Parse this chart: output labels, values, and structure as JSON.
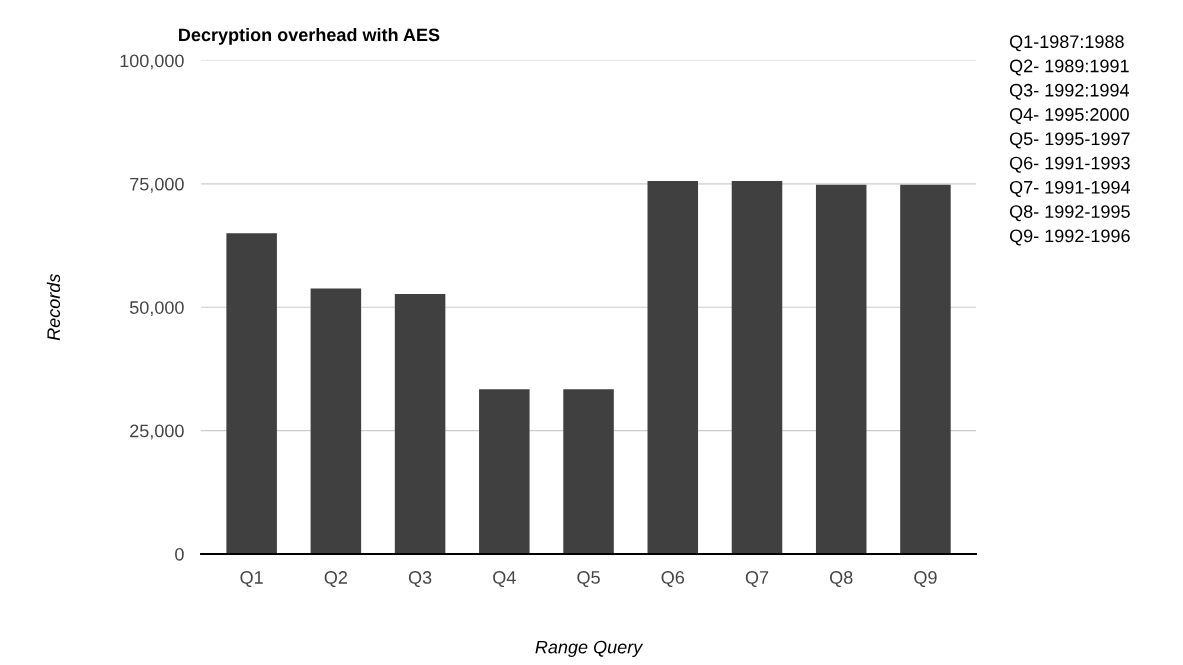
{
  "chart_data": {
    "type": "bar",
    "title": "Decryption overhead with AES",
    "xlabel": "Range Query",
    "ylabel": "Records",
    "categories": [
      "Q1",
      "Q2",
      "Q3",
      "Q4",
      "Q5",
      "Q6",
      "Q7",
      "Q8",
      "Q9"
    ],
    "values": [
      65000,
      53800,
      52700,
      33400,
      33400,
      75600,
      75600,
      74800,
      74800
    ],
    "color": "#404040",
    "ylim": [
      0,
      100000
    ],
    "yticks": [
      {
        "value": 0,
        "label": "0"
      },
      {
        "value": 25000,
        "label": "25,000"
      },
      {
        "value": 50000,
        "label": "50,000"
      },
      {
        "value": 75000,
        "label": "75,000"
      },
      {
        "value": 100000,
        "label": "100,000"
      }
    ],
    "grid": "y",
    "annotations": [
      "Q1-1987:1988",
      "Q2- 1989:1991",
      "Q3- 1992:1994",
      "Q4- 1995:2000",
      "Q5- 1995-1997",
      "Q6- 1991-1993",
      "Q7- 1991-1994",
      "Q8- 1992-1995",
      "Q9- 1992-1996"
    ]
  }
}
